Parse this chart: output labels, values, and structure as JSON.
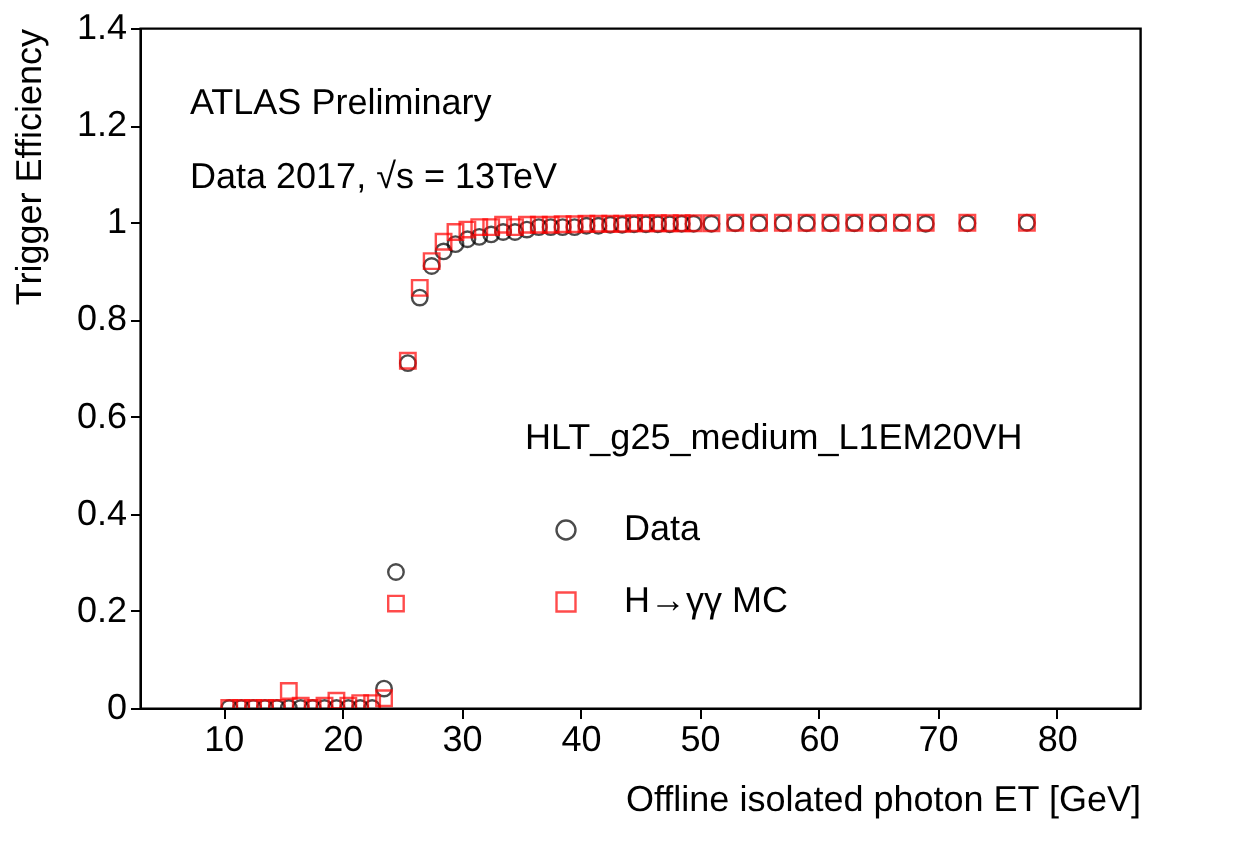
{
  "chart_data": {
    "type": "scatter",
    "xlabel": "Offline isolated photon ET [GeV]",
    "ylabel": "Trigger Efficiency",
    "annotations": [
      "ATLAS Preliminary",
      "Data 2017, √s = 13TeV",
      "HLT_g25_medium_L1EM20VH"
    ],
    "xlim": [
      3,
      87
    ],
    "xticks": [
      10,
      20,
      30,
      40,
      50,
      60,
      70,
      80
    ],
    "ylim": [
      0,
      1.4
    ],
    "yticks": [
      0,
      0.2,
      0.4,
      0.6,
      0.8,
      1,
      1.2,
      1.4
    ],
    "grid": false,
    "legend": "bottom right",
    "series": [
      {
        "name": "Data",
        "color": "#000000",
        "marker": "circle",
        "x": [
          10.5,
          11.5,
          12.5,
          13.5,
          14.5,
          15.5,
          16.5,
          17.5,
          18.5,
          19.5,
          20.5,
          21.5,
          22.5,
          23.5,
          24.5,
          25.5,
          26.5,
          27.5,
          28.5,
          29.5,
          30.5,
          31.5,
          32.5,
          33.5,
          34.5,
          35.5,
          36.5,
          37.5,
          38.5,
          39.5,
          40.5,
          41.5,
          42.5,
          43.5,
          44.5,
          45.5,
          46.5,
          47.5,
          48.5,
          49.5,
          51,
          53,
          55,
          57,
          59,
          61,
          63,
          65,
          67,
          69,
          72.5,
          77.5
        ],
        "values": [
          0,
          0,
          0,
          0,
          0,
          0,
          0,
          0,
          0,
          0,
          0,
          0,
          0,
          0.04,
          0.28,
          0.71,
          0.845,
          0.91,
          0.94,
          0.955,
          0.965,
          0.97,
          0.975,
          0.98,
          0.98,
          0.985,
          0.99,
          0.99,
          0.99,
          0.99,
          0.993,
          0.993,
          0.995,
          0.995,
          0.996,
          0.996,
          0.996,
          0.996,
          0.997,
          0.997,
          0.997,
          0.998,
          0.998,
          0.998,
          0.998,
          0.998,
          0.998,
          0.998,
          0.999,
          0.997,
          0.998,
          0.999
        ]
      },
      {
        "name": "H→γγ MC",
        "color": "#ff0000",
        "marker": "square",
        "x": [
          10.5,
          11.5,
          12.5,
          13.5,
          14.5,
          15.5,
          16.5,
          17.5,
          18.5,
          19.5,
          20.5,
          21.5,
          22.5,
          23.5,
          24.5,
          25.5,
          26.5,
          27.5,
          28.5,
          29.5,
          30.5,
          31.5,
          32.5,
          33.5,
          34.5,
          35.5,
          36.5,
          37.5,
          38.5,
          39.5,
          40.5,
          41.5,
          42.5,
          43.5,
          44.5,
          45.5,
          46.5,
          47.5,
          48.5,
          49.5,
          51,
          53,
          55,
          57,
          59,
          61,
          63,
          65,
          67,
          69,
          72.5,
          77.5
        ],
        "values": [
          0,
          0,
          0,
          0,
          0,
          0.035,
          0.005,
          0,
          0.005,
          0.015,
          0.005,
          0.01,
          0.01,
          0.02,
          0.215,
          0.715,
          0.865,
          0.92,
          0.96,
          0.98,
          0.985,
          0.99,
          0.99,
          0.995,
          0.99,
          0.995,
          0.995,
          0.995,
          0.996,
          0.996,
          0.997,
          0.997,
          0.997,
          0.997,
          0.998,
          0.998,
          0.998,
          0.998,
          0.998,
          0.998,
          0.998,
          0.999,
          0.999,
          0.999,
          0.999,
          0.999,
          0.999,
          0.999,
          0.999,
          0.999,
          0.999,
          0.999
        ]
      }
    ]
  }
}
